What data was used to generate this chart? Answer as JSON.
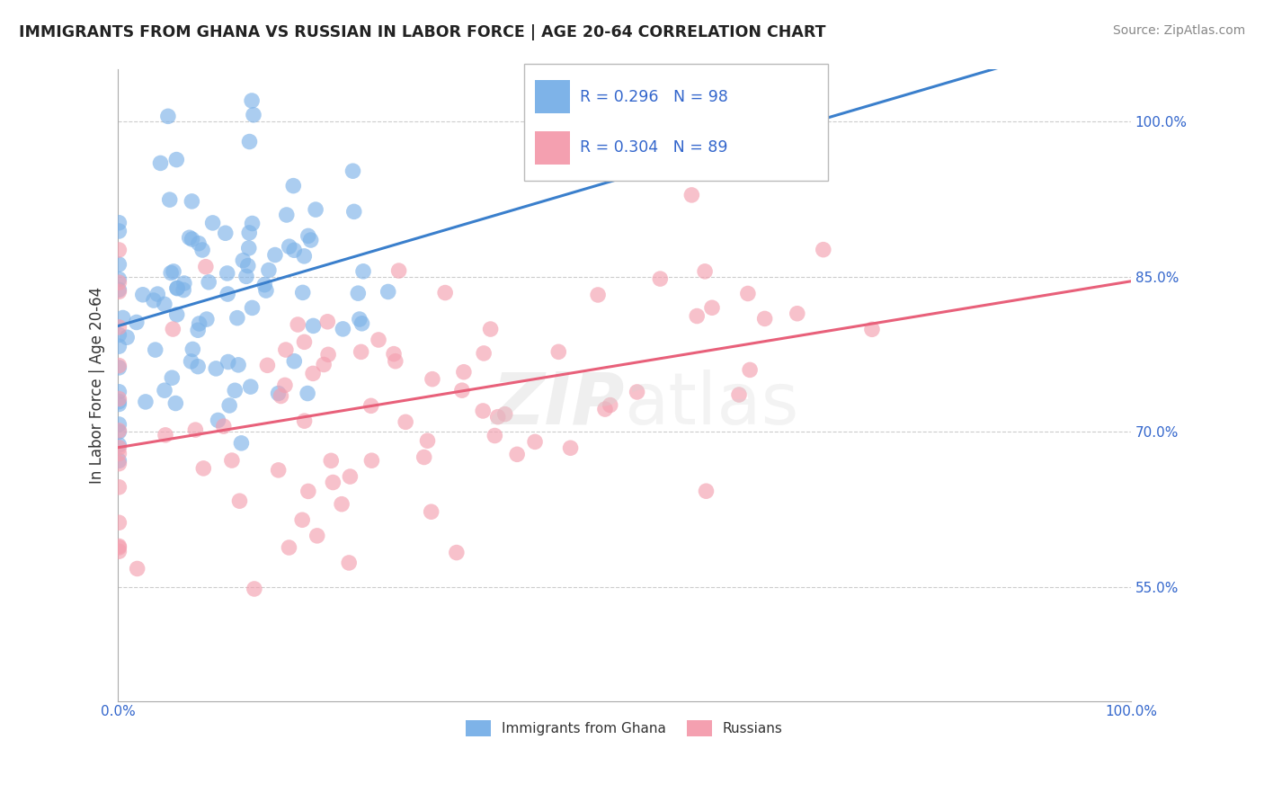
{
  "title": "IMMIGRANTS FROM GHANA VS RUSSIAN IN LABOR FORCE | AGE 20-64 CORRELATION CHART",
  "source": "Source: ZipAtlas.com",
  "ylabel": "In Labor Force | Age 20-64",
  "legend_label1": "Immigrants from Ghana",
  "legend_label2": "Russians",
  "r1": 0.296,
  "n1": 98,
  "r2": 0.304,
  "n2": 89,
  "color_ghana": "#7EB3E8",
  "color_russian": "#F4A0B0",
  "color_line_ghana": "#3A7FCC",
  "color_line_russian": "#E8607A",
  "bg_color": "#FFFFFF",
  "ytick_vals": [
    0.55,
    0.7,
    0.85,
    1.0
  ],
  "ytick_labels": [
    "55.0%",
    "70.0%",
    "85.0%",
    "100.0%"
  ],
  "xlim": [
    0,
    100
  ],
  "ylim": [
    0.44,
    1.05
  ]
}
